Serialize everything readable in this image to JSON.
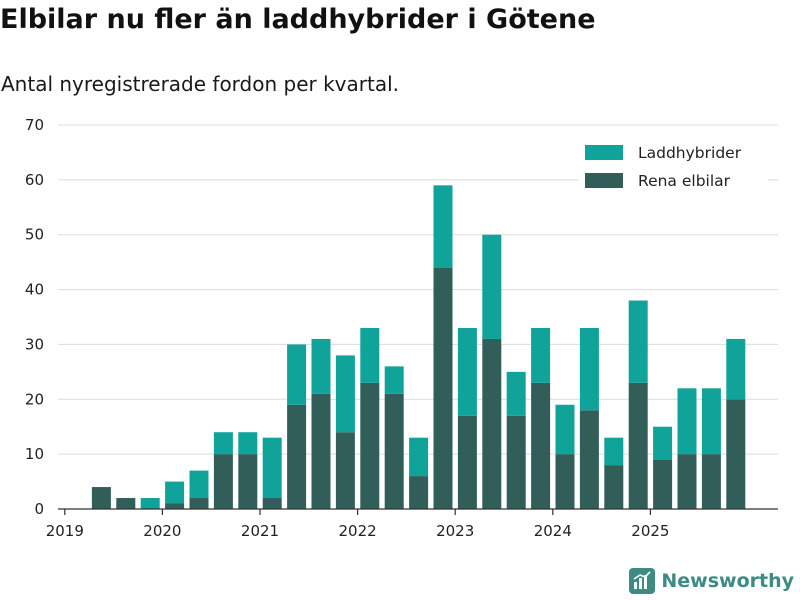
{
  "header": {
    "title": "Elbilar nu fler än laddhybrider i Götene",
    "subtitle": "Antal nyregistrerade fordon per kvartal."
  },
  "brand": {
    "name": "Newsworthy",
    "icon": "newsworthy-logo-icon",
    "color": "#3d8b84"
  },
  "colors": {
    "hybrid": "#0fa39a",
    "electric": "#325e5a",
    "grid": "#dcdcdc",
    "axis": "#333333"
  },
  "chart_data": {
    "type": "bar",
    "stacked": true,
    "title": "Elbilar nu fler än laddhybrider i Götene",
    "subtitle": "Antal nyregistrerade fordon per kvartal.",
    "xlabel": "",
    "ylabel": "",
    "ylim": [
      0,
      70
    ],
    "yticks": [
      0,
      10,
      20,
      30,
      40,
      50,
      60,
      70
    ],
    "grid": true,
    "legend_position": "top-right",
    "x_ticks": [
      {
        "label": "2019",
        "at": 0
      },
      {
        "label": "2020",
        "at": 4
      },
      {
        "label": "2021",
        "at": 8
      },
      {
        "label": "2022",
        "at": 12
      },
      {
        "label": "2023",
        "at": 16
      },
      {
        "label": "2024",
        "at": 20
      },
      {
        "label": "2025",
        "at": 24
      }
    ],
    "categories": [
      "2019 Q1",
      "2019 Q2",
      "2019 Q3",
      "2019 Q4",
      "2020 Q1",
      "2020 Q2",
      "2020 Q3",
      "2020 Q4",
      "2021 Q1",
      "2021 Q2",
      "2021 Q3",
      "2021 Q4",
      "2022 Q1",
      "2022 Q2",
      "2022 Q3",
      "2022 Q4",
      "2023 Q1",
      "2023 Q2",
      "2023 Q3",
      "2023 Q4",
      "2024 Q1",
      "2024 Q2",
      "2024 Q3",
      "2024 Q4",
      "2025 Q1",
      "2025 Q2",
      "2025 Q3",
      "2025 Q4"
    ],
    "series": [
      {
        "name": "Rena elbilar",
        "key": "electric",
        "values": [
          0,
          4,
          2,
          0,
          1,
          2,
          10,
          10,
          2,
          19,
          21,
          14,
          23,
          21,
          6,
          44,
          17,
          31,
          17,
          23,
          10,
          18,
          8,
          23,
          9,
          10,
          10,
          20
        ]
      },
      {
        "name": "Laddhybrider",
        "key": "hybrid",
        "values": [
          0,
          0,
          0,
          2,
          4,
          5,
          4,
          4,
          11,
          11,
          10,
          14,
          10,
          5,
          7,
          15,
          16,
          19,
          8,
          10,
          9,
          15,
          5,
          15,
          6,
          12,
          12,
          11
        ]
      }
    ],
    "legend": [
      {
        "label": "Laddhybrider",
        "key": "hybrid"
      },
      {
        "label": "Rena elbilar",
        "key": "electric"
      }
    ]
  }
}
